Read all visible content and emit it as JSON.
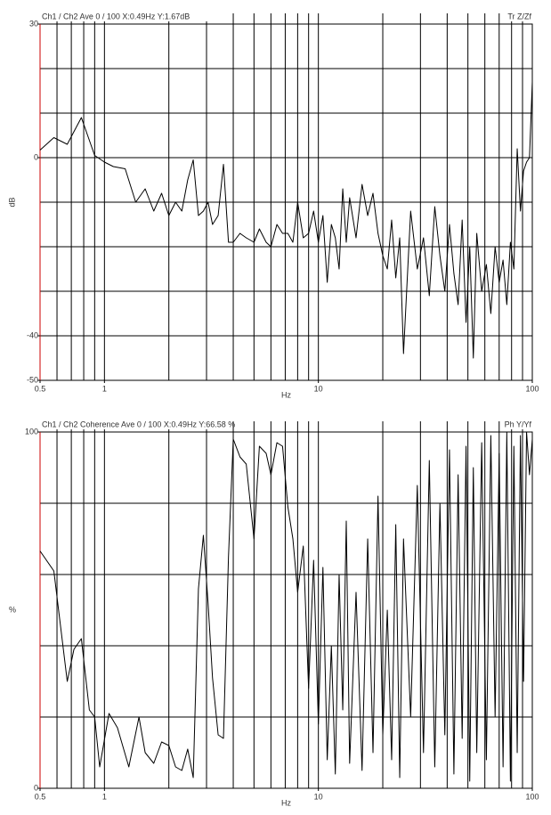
{
  "chart_data": [
    {
      "type": "line",
      "title": "Ch1 / Ch2  Ave 0 / 100  X:0.49Hz  Y:1.67dB",
      "title_right": "Tr Z/Zf",
      "xlabel": "Hz",
      "ylabel": "dB",
      "log_x": true,
      "grid": true,
      "axis_color": "#cc0000",
      "xlim": [
        0.5,
        100
      ],
      "xticks": [
        0.5,
        1,
        10,
        100
      ],
      "xgrid": [
        0.6,
        0.7,
        0.8,
        0.9,
        1,
        2,
        3,
        4,
        5,
        6,
        7,
        8,
        9,
        10,
        20,
        30,
        40,
        50,
        60,
        70,
        80,
        90
      ],
      "ylim": [
        -50,
        30
      ],
      "yticks": [
        30,
        0,
        -40,
        -50
      ],
      "ygrid": [
        -40,
        -30,
        -20,
        -10,
        0,
        10,
        20
      ],
      "x": [
        0.5,
        0.58,
        0.67,
        0.78,
        0.9,
        1.0,
        1.1,
        1.25,
        1.4,
        1.55,
        1.7,
        1.85,
        2.0,
        2.15,
        2.3,
        2.45,
        2.6,
        2.75,
        2.9,
        3.05,
        3.2,
        3.4,
        3.6,
        3.8,
        4.0,
        4.3,
        4.6,
        5.0,
        5.3,
        5.7,
        6.0,
        6.4,
        6.8,
        7.2,
        7.6,
        8.0,
        8.5,
        9.0,
        9.5,
        10,
        10.5,
        11,
        11.5,
        12,
        12.5,
        13,
        13.5,
        14,
        15,
        16,
        17,
        18,
        19,
        20,
        21,
        22,
        23,
        24,
        25,
        27,
        29,
        31,
        33,
        35,
        37,
        39,
        41,
        43,
        45,
        47,
        49,
        51,
        53,
        55,
        58,
        61,
        64,
        67,
        70,
        73,
        76,
        79,
        82,
        85,
        88,
        91,
        94,
        97,
        100
      ],
      "series": [
        {
          "color": "#000000",
          "values": [
            1.7,
            4.5,
            3,
            9,
            0.5,
            -1,
            -2,
            -2.5,
            -10,
            -7,
            -12,
            -8,
            -13,
            -10,
            -12,
            -5,
            -0.5,
            -13,
            -12,
            -10,
            -15,
            -13,
            -1.5,
            -19,
            -19,
            -17,
            -18,
            -19,
            -16,
            -19,
            -20,
            -15,
            -17,
            -17,
            -19,
            -10,
            -18,
            -17,
            -12,
            -19,
            -13,
            -28,
            -15,
            -18,
            -25,
            -7,
            -19,
            -9,
            -18,
            -6,
            -13,
            -8,
            -17,
            -22,
            -25,
            -14,
            -27,
            -18,
            -44,
            -12,
            -25,
            -18,
            -31,
            -11,
            -22,
            -30,
            -15,
            -26,
            -33,
            -14,
            -37,
            -20,
            -45,
            -17,
            -30,
            -24,
            -35,
            -20,
            -28,
            -23,
            -33,
            -19,
            -25,
            2,
            -12,
            -3,
            -1,
            0,
            17
          ]
        }
      ]
    },
    {
      "type": "line",
      "title": "Ch1 / Ch2  Coherence Ave 0 / 100  X:0.49Hz  Y:66.58 %",
      "title_right": "Ph Y/Yf",
      "xlabel": "Hz",
      "ylabel": "%",
      "log_x": true,
      "grid": true,
      "axis_color": "#cc0000",
      "xlim": [
        0.5,
        100
      ],
      "xticks": [
        0.5,
        1,
        10,
        100
      ],
      "xgrid": [
        0.6,
        0.7,
        0.8,
        0.9,
        1,
        2,
        3,
        4,
        5,
        6,
        7,
        8,
        9,
        10,
        20,
        30,
        40,
        50,
        60,
        70,
        80,
        90
      ],
      "ylim": [
        0,
        100
      ],
      "yticks": [
        100,
        0
      ],
      "ygrid": [
        20,
        40,
        60,
        80
      ],
      "x": [
        0.5,
        0.58,
        0.67,
        0.72,
        0.78,
        0.85,
        0.9,
        0.95,
        1.05,
        1.15,
        1.3,
        1.45,
        1.55,
        1.7,
        1.85,
        2.0,
        2.15,
        2.3,
        2.45,
        2.6,
        2.75,
        2.9,
        3.05,
        3.2,
        3.4,
        3.6,
        3.8,
        4.0,
        4.3,
        4.6,
        5.0,
        5.3,
        5.7,
        6.0,
        6.4,
        6.8,
        7.2,
        7.6,
        8.0,
        8.5,
        9.0,
        9.5,
        10,
        10.5,
        11,
        11.5,
        12,
        12.5,
        13,
        13.5,
        14,
        15,
        16,
        17,
        18,
        19,
        20,
        21,
        22,
        23,
        24,
        25,
        27,
        29,
        31,
        33,
        35,
        37,
        39,
        41,
        43,
        45,
        47,
        49,
        51,
        53,
        55,
        58,
        61,
        64,
        67,
        70,
        73,
        76,
        79,
        82,
        85,
        88,
        91,
        94,
        97,
        100
      ],
      "series": [
        {
          "color": "#000000",
          "values": [
            66.6,
            61,
            30,
            39,
            42,
            22,
            20,
            6,
            21,
            17,
            6,
            20,
            10,
            7,
            13,
            12,
            6,
            5,
            11,
            3,
            56,
            71,
            52,
            31,
            15,
            14,
            65,
            98,
            93,
            91,
            70,
            96,
            94,
            88,
            97,
            96,
            79,
            70,
            55,
            68,
            28,
            64,
            18,
            62,
            8,
            40,
            4,
            60,
            22,
            75,
            7,
            55,
            5,
            70,
            10,
            82,
            15,
            50,
            8,
            74,
            3,
            70,
            20,
            85,
            10,
            92,
            6,
            80,
            15,
            95,
            4,
            88,
            14,
            96,
            2,
            90,
            10,
            97,
            8,
            99,
            20,
            94,
            6,
            100,
            2,
            96,
            10,
            99,
            30,
            100,
            88,
            98
          ]
        }
      ]
    }
  ]
}
